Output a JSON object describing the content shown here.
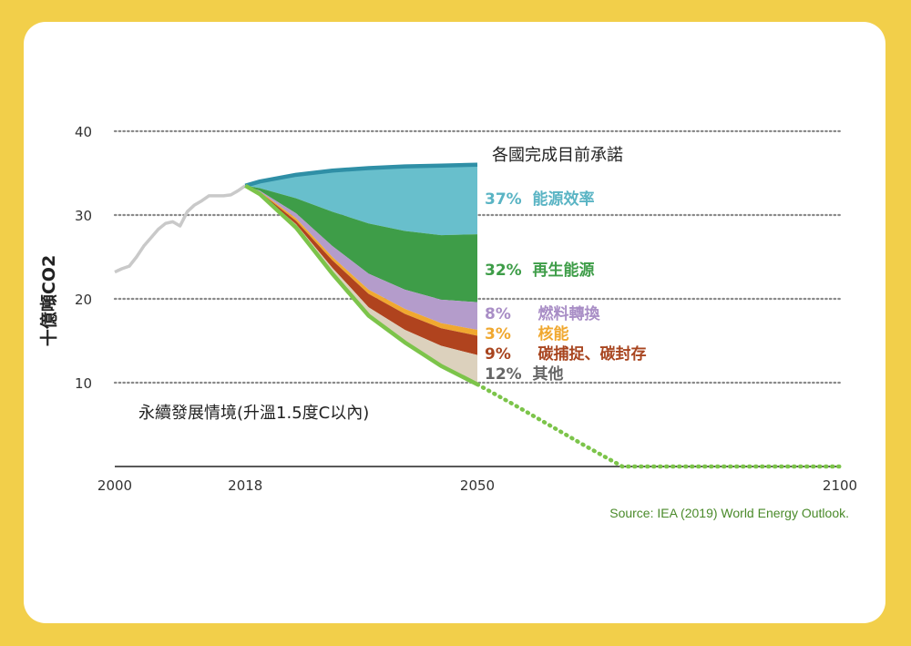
{
  "chart_data": {
    "type": "area",
    "ylabel": "十億噸CO2",
    "x_ticks": [
      2000,
      2018,
      2050,
      2100
    ],
    "y_ticks": [
      10,
      20,
      30,
      40
    ],
    "xlim": [
      2000,
      2100
    ],
    "ylim": [
      0,
      40
    ],
    "grid": "dotted horizontal",
    "source": "Source: IEA (2019) World Energy Outlook.",
    "annotations": {
      "pledges": "各國完成目前承諾",
      "sustainable": "永續發展情境(升溫1.5度C以內)"
    },
    "historical": {
      "x": [
        2000,
        2001,
        2002,
        2003,
        2004,
        2005,
        2006,
        2007,
        2008,
        2009,
        2010,
        2011,
        2012,
        2013,
        2014,
        2015,
        2016,
        2017,
        2018
      ],
      "y": [
        23.2,
        23.6,
        23.9,
        25.0,
        26.3,
        27.3,
        28.3,
        29.0,
        29.2,
        28.7,
        30.4,
        31.2,
        31.7,
        32.3,
        32.3,
        32.3,
        32.4,
        32.9,
        33.5
      ]
    },
    "pledges_path": {
      "x": [
        2018,
        2020,
        2025,
        2030,
        2035,
        2040,
        2045,
        2050
      ],
      "y": [
        33.5,
        34.0,
        34.8,
        35.3,
        35.6,
        35.8,
        35.9,
        36.0
      ]
    },
    "sustainable_path": {
      "x": [
        2018,
        2020,
        2025,
        2030,
        2035,
        2040,
        2045,
        2050,
        2055,
        2060,
        2065,
        2070,
        2100
      ],
      "y": [
        33.5,
        32.5,
        28.5,
        23.0,
        18.0,
        14.8,
        12.0,
        9.8,
        7.4,
        4.9,
        2.4,
        0,
        0
      ]
    },
    "series": [
      {
        "name": "能源效率",
        "label": "37%  能源效率",
        "share": 37,
        "color": "#68bfcc",
        "lower": [
          33.5,
          33.2,
          32.0,
          30.4,
          29.0,
          28.1,
          27.6,
          27.7
        ]
      },
      {
        "name": "再生能源",
        "label": "32%  再生能源",
        "share": 32,
        "color": "#3e9d48",
        "lower": [
          33.5,
          32.9,
          30.2,
          26.3,
          23.0,
          21.1,
          19.9,
          19.6
        ]
      },
      {
        "name": "燃料轉換",
        "label": "8%     燃料轉換",
        "share": 8,
        "color": "#b49ccb",
        "lower": [
          33.5,
          32.8,
          29.6,
          25.0,
          21.1,
          18.8,
          17.1,
          16.3
        ]
      },
      {
        "name": "核能",
        "label": "3%     核能",
        "share": 3,
        "color": "#f0a830",
        "lower": [
          33.5,
          32.75,
          29.3,
          24.6,
          20.6,
          18.2,
          16.5,
          15.6
        ]
      },
      {
        "name": "碳捕捉、碳封存",
        "label": "9%     碳捕捉、碳封存",
        "share": 9,
        "color": "#b0431e",
        "lower": [
          33.5,
          32.6,
          28.9,
          23.7,
          19.0,
          16.3,
          14.4,
          13.3
        ]
      },
      {
        "name": "其他",
        "label": "12%  其他",
        "share": 12,
        "color": "#dcd1bd",
        "lower": [
          33.5,
          32.5,
          28.5,
          23.0,
          18.0,
          14.8,
          12.0,
          9.8
        ]
      }
    ],
    "label_colors": [
      "#5ab4c4",
      "#3e9d48",
      "#a98ec6",
      "#f0a830",
      "#a8451f",
      "#666666"
    ]
  }
}
